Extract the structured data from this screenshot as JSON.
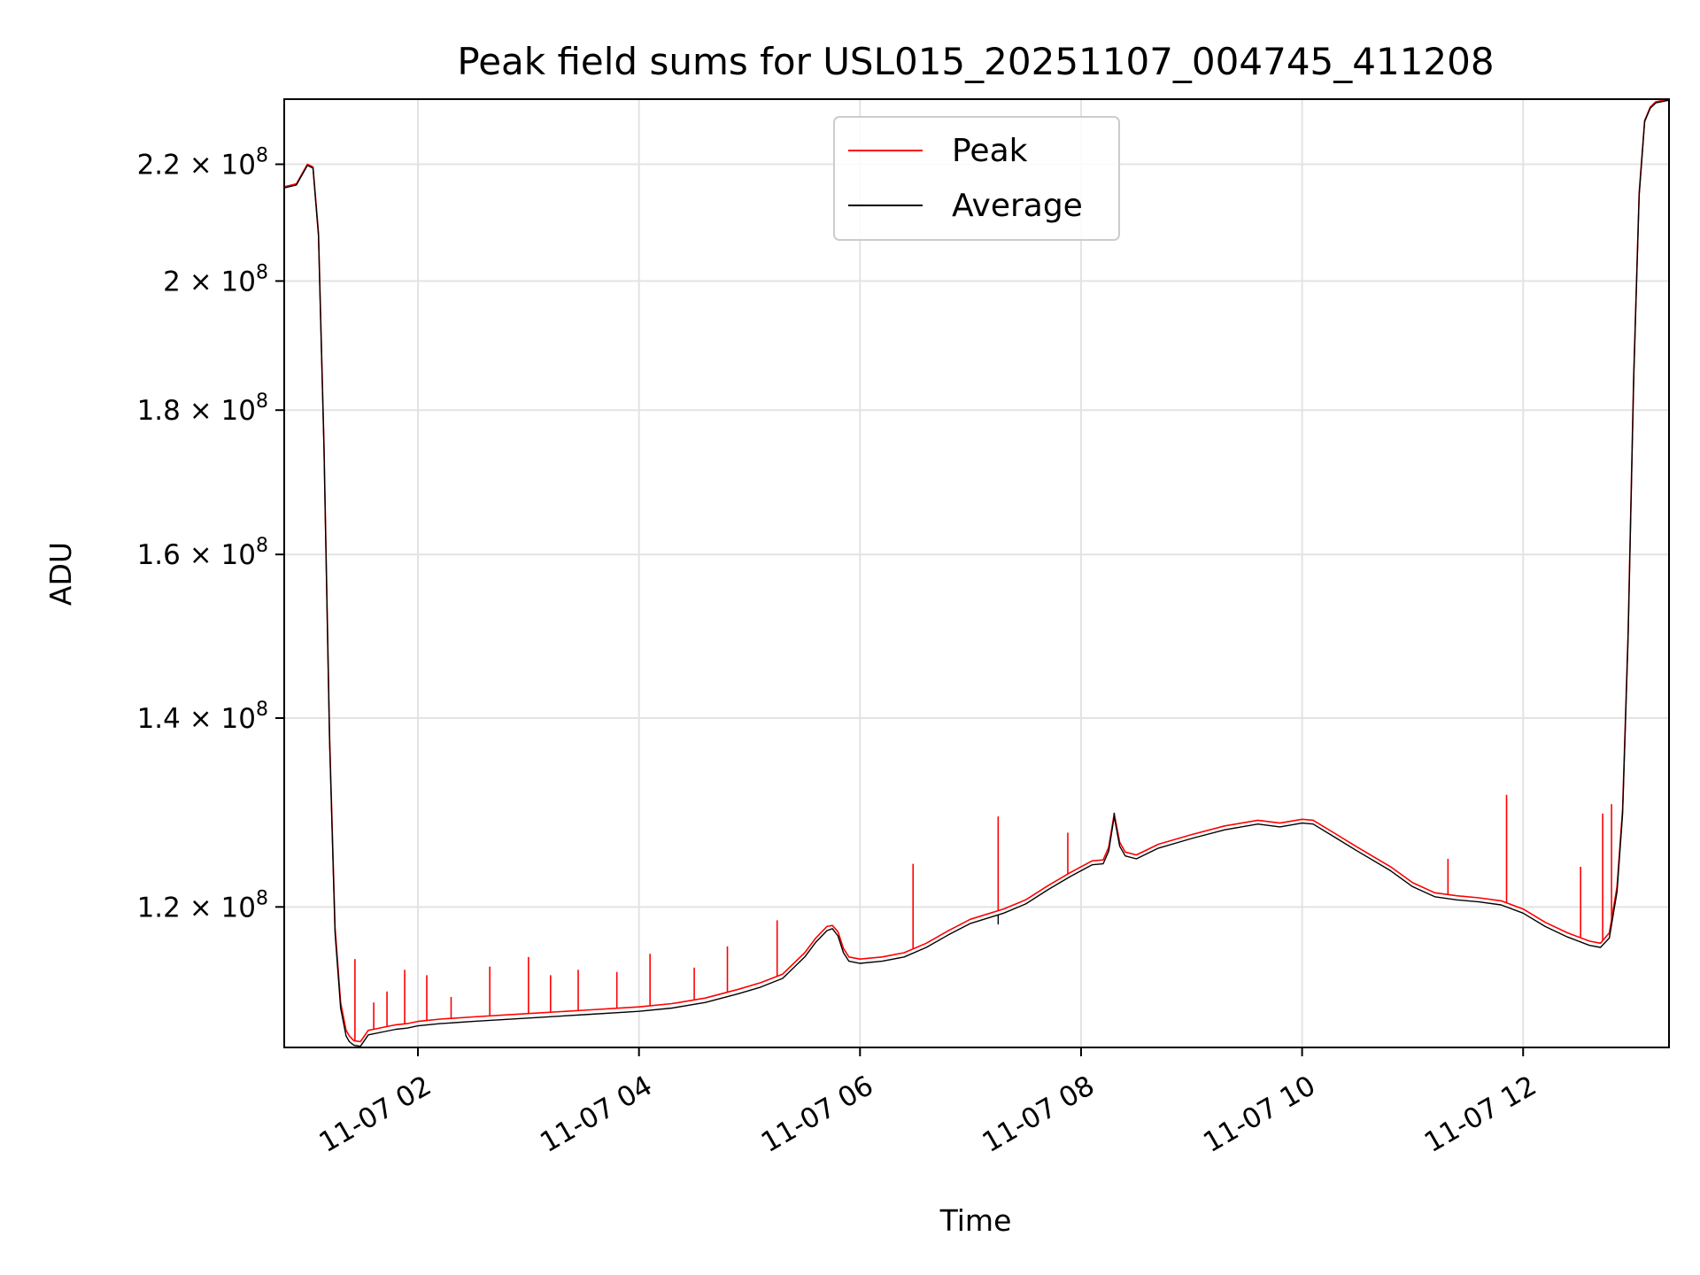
{
  "chart_data": {
    "type": "line",
    "title": "Peak field sums for USL015_20251107_004745_411208",
    "xlabel": "Time",
    "ylabel": "ADU",
    "yscale": "log",
    "grid": true,
    "legend_position": "top-center",
    "xlim_hours": [
      0.79,
      13.32
    ],
    "ylim": [
      107000000,
      232000000
    ],
    "x_ticks": [
      {
        "hour": 2,
        "label": "11-07 02"
      },
      {
        "hour": 4,
        "label": "11-07 04"
      },
      {
        "hour": 6,
        "label": "11-07 06"
      },
      {
        "hour": 8,
        "label": "11-07 08"
      },
      {
        "hour": 10,
        "label": "11-07 10"
      },
      {
        "hour": 12,
        "label": "11-07 12"
      }
    ],
    "y_ticks": [
      {
        "value": 120000000,
        "mantissa": "1.2"
      },
      {
        "value": 140000000,
        "mantissa": "1.4"
      },
      {
        "value": 160000000,
        "mantissa": "1.6"
      },
      {
        "value": 180000000,
        "mantissa": "1.8"
      },
      {
        "value": 200000000,
        "mantissa": "2"
      },
      {
        "value": 220000000,
        "mantissa": "2.2"
      }
    ],
    "y_tick_times": "×",
    "y_tick_base": "10",
    "y_tick_exponent": "8",
    "series": [
      {
        "name": "Peak",
        "color": "#ff0000",
        "x_hours": [
          0.79,
          0.9,
          1.0,
          1.05,
          1.1,
          1.15,
          1.2,
          1.25,
          1.3,
          1.35,
          1.38,
          1.42,
          1.48,
          1.55,
          1.6,
          1.7,
          1.8,
          1.9,
          2.0,
          2.2,
          2.5,
          3.0,
          3.5,
          4.0,
          4.3,
          4.6,
          4.9,
          5.1,
          5.3,
          5.5,
          5.6,
          5.7,
          5.75,
          5.8,
          5.85,
          5.9,
          6.0,
          6.2,
          6.4,
          6.6,
          6.8,
          7.0,
          7.3,
          7.5,
          7.7,
          7.9,
          8.0,
          8.1,
          8.2,
          8.25,
          8.3,
          8.35,
          8.4,
          8.5,
          8.7,
          9.0,
          9.3,
          9.6,
          9.8,
          10.0,
          10.1,
          10.3,
          10.5,
          10.8,
          11.0,
          11.2,
          11.4,
          11.6,
          11.8,
          12.0,
          12.2,
          12.4,
          12.6,
          12.7,
          12.78,
          12.85,
          12.9,
          12.95,
          13.0,
          13.05,
          13.1,
          13.15,
          13.2,
          13.32
        ],
        "y": [
          216000000,
          216500000,
          220000000,
          219500000,
          208000000,
          175000000,
          138000000,
          118000000,
          111000000,
          108500000,
          108000000,
          107600000,
          107500000,
          108500000,
          108600000,
          108800000,
          109000000,
          109100000,
          109300000,
          109500000,
          109700000,
          110000000,
          110300000,
          110600000,
          110900000,
          111400000,
          112200000,
          112800000,
          113600000,
          115600000,
          117000000,
          118100000,
          118200000,
          117600000,
          116000000,
          115200000,
          115000000,
          115200000,
          115600000,
          116500000,
          117700000,
          118800000,
          119800000,
          120700000,
          122100000,
          123400000,
          124000000,
          124600000,
          124700000,
          126000000,
          129500000,
          126500000,
          125500000,
          125200000,
          126300000,
          127300000,
          128200000,
          128800000,
          128500000,
          128900000,
          128800000,
          127400000,
          126000000,
          124000000,
          122400000,
          121400000,
          121100000,
          120900000,
          120600000,
          119800000,
          118500000,
          117500000,
          116700000,
          116500000,
          117500000,
          122000000,
          130000000,
          150000000,
          185000000,
          215000000,
          228000000,
          230500000,
          231500000,
          232000000
        ]
      },
      {
        "name": "Average",
        "color": "#000000",
        "x_hours": [
          0.79,
          0.9,
          1.0,
          1.05,
          1.1,
          1.15,
          1.2,
          1.25,
          1.3,
          1.35,
          1.38,
          1.42,
          1.48,
          1.55,
          1.6,
          1.7,
          1.8,
          1.9,
          2.0,
          2.2,
          2.5,
          3.0,
          3.5,
          4.0,
          4.3,
          4.6,
          4.9,
          5.1,
          5.3,
          5.5,
          5.6,
          5.7,
          5.75,
          5.8,
          5.85,
          5.9,
          6.0,
          6.2,
          6.4,
          6.6,
          6.8,
          7.0,
          7.3,
          7.5,
          7.7,
          7.9,
          8.0,
          8.1,
          8.2,
          8.25,
          8.3,
          8.35,
          8.4,
          8.5,
          8.7,
          9.0,
          9.3,
          9.6,
          9.8,
          10.0,
          10.1,
          10.3,
          10.5,
          10.8,
          11.0,
          11.2,
          11.4,
          11.6,
          11.8,
          12.0,
          12.2,
          12.4,
          12.6,
          12.7,
          12.78,
          12.85,
          12.9,
          12.95,
          13.0,
          13.05,
          13.1,
          13.15,
          13.2,
          13.32
        ],
        "y": [
          215800000,
          216300000,
          219800000,
          219300000,
          207500000,
          174500000,
          137500000,
          117500000,
          110500000,
          108000000,
          107500000,
          107200000,
          107100000,
          108100000,
          108200000,
          108400000,
          108600000,
          108700000,
          108900000,
          109100000,
          109300000,
          109600000,
          109900000,
          110200000,
          110500000,
          111000000,
          111800000,
          112400000,
          113200000,
          115200000,
          116600000,
          117700000,
          117900000,
          117200000,
          115600000,
          114800000,
          114600000,
          114800000,
          115200000,
          116100000,
          117300000,
          118400000,
          119400000,
          120300000,
          121700000,
          123000000,
          123600000,
          124200000,
          124300000,
          125600000,
          129200000,
          126100000,
          125100000,
          124800000,
          125900000,
          126900000,
          127800000,
          128400000,
          128100000,
          128500000,
          128400000,
          127000000,
          125600000,
          123600000,
          122000000,
          121000000,
          120700000,
          120500000,
          120200000,
          119400000,
          118100000,
          117100000,
          116300000,
          116100000,
          117000000,
          121500000,
          129500000,
          149500000,
          184500000,
          214500000,
          227800000,
          230300000,
          231300000,
          231800000
        ]
      }
    ],
    "spikes_peak": [
      {
        "hour": 1.43,
        "value": 115000000
      },
      {
        "hour": 1.6,
        "value": 111000000
      },
      {
        "hour": 1.72,
        "value": 112000000
      },
      {
        "hour": 1.88,
        "value": 114000000
      },
      {
        "hour": 2.08,
        "value": 113500000
      },
      {
        "hour": 2.3,
        "value": 111500000
      },
      {
        "hour": 2.65,
        "value": 114300000
      },
      {
        "hour": 3.0,
        "value": 115200000
      },
      {
        "hour": 3.2,
        "value": 113500000
      },
      {
        "hour": 3.45,
        "value": 114000000
      },
      {
        "hour": 3.8,
        "value": 113800000
      },
      {
        "hour": 4.1,
        "value": 115500000
      },
      {
        "hour": 4.5,
        "value": 114200000
      },
      {
        "hour": 4.8,
        "value": 116200000
      },
      {
        "hour": 5.25,
        "value": 118700000
      },
      {
        "hour": 6.48,
        "value": 124300000
      },
      {
        "hour": 7.25,
        "value": 129200000
      },
      {
        "hour": 7.88,
        "value": 127500000
      },
      {
        "hour": 11.32,
        "value": 124800000
      },
      {
        "hour": 11.85,
        "value": 131500000
      },
      {
        "hour": 12.52,
        "value": 124000000
      },
      {
        "hour": 12.72,
        "value": 129500000
      },
      {
        "hour": 12.8,
        "value": 130500000
      }
    ],
    "spikes_average": [
      {
        "hour": 7.25,
        "value": 118300000
      },
      {
        "hour": 8.3,
        "value": 129600000
      }
    ]
  }
}
